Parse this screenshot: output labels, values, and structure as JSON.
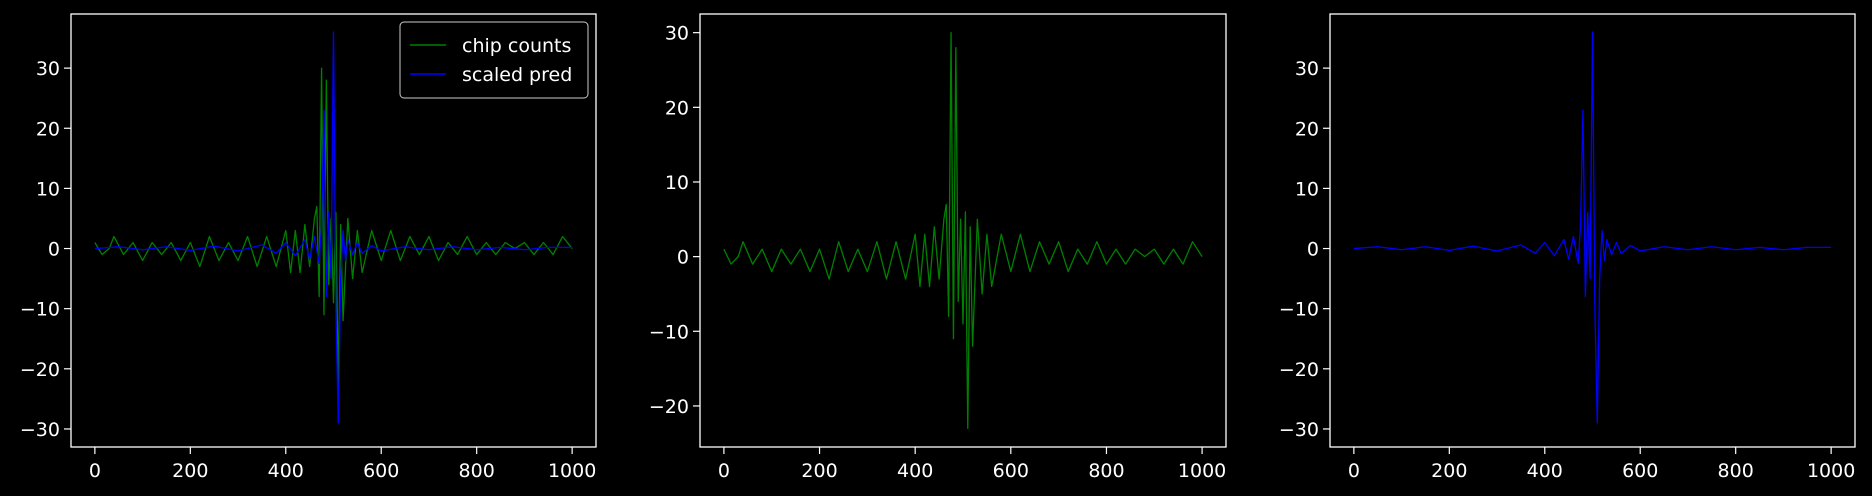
{
  "chart_data": [
    {
      "type": "line",
      "title": "",
      "xlabel": "",
      "ylabel": "",
      "xlim": [
        -50,
        1050
      ],
      "ylim": [
        -33,
        39
      ],
      "xticks": [
        0,
        200,
        400,
        600,
        800,
        1000
      ],
      "yticks": [
        -30,
        -20,
        -10,
        0,
        10,
        20,
        30
      ],
      "xtick_labels": [
        "0",
        "200",
        "400",
        "600",
        "800",
        "1000"
      ],
      "ytick_labels": [
        "−30",
        "−20",
        "−10",
        "0",
        "10",
        "20",
        "30"
      ],
      "grid": false,
      "legend": "upper right",
      "series": [
        {
          "name": "chip counts",
          "color": "#008000",
          "x": [
            0,
            15,
            30,
            40,
            60,
            80,
            100,
            120,
            140,
            160,
            180,
            200,
            220,
            240,
            260,
            280,
            300,
            320,
            340,
            360,
            380,
            400,
            410,
            420,
            430,
            440,
            450,
            460,
            465,
            470,
            475,
            480,
            485,
            490,
            495,
            500,
            505,
            510,
            515,
            520,
            530,
            540,
            550,
            560,
            580,
            600,
            620,
            640,
            660,
            680,
            700,
            720,
            740,
            760,
            780,
            800,
            820,
            840,
            860,
            880,
            900,
            920,
            940,
            960,
            980,
            1000
          ],
          "values": [
            1,
            -1,
            0,
            2,
            -1,
            1,
            -2,
            1,
            -1,
            1,
            -2,
            1,
            -3,
            2,
            -2,
            1,
            -2,
            2,
            -3,
            2,
            -3,
            3,
            -4,
            3,
            -4,
            4,
            -3,
            5,
            7,
            -8,
            30,
            -11,
            28,
            -6,
            5,
            -9,
            6,
            -23,
            4,
            -12,
            5,
            -5,
            3,
            -4,
            3,
            -2,
            3,
            -2,
            2,
            -1,
            2,
            -2,
            1,
            -1,
            2,
            -1,
            1,
            -1,
            1,
            0,
            1,
            -1,
            1,
            -1,
            2,
            0
          ]
        },
        {
          "name": "scaled pred",
          "color": "#0000ff",
          "x": [
            0,
            50,
            100,
            150,
            200,
            250,
            300,
            350,
            380,
            400,
            420,
            440,
            450,
            460,
            470,
            475,
            480,
            485,
            490,
            495,
            500,
            505,
            510,
            515,
            520,
            525,
            530,
            540,
            550,
            560,
            580,
            600,
            650,
            700,
            750,
            800,
            850,
            900,
            950,
            1000
          ],
          "values": [
            0,
            0.3,
            -0.2,
            0.3,
            -0.3,
            0.4,
            -0.4,
            0.6,
            -0.8,
            1,
            -1.2,
            1.5,
            -1.8,
            2,
            -2.5,
            4,
            23,
            -8,
            6,
            -5,
            36,
            -10,
            -29,
            -5,
            3,
            -2,
            1.5,
            -1,
            1,
            -0.8,
            0.5,
            -0.4,
            0.3,
            -0.2,
            0.3,
            -0.2,
            0.2,
            -0.2,
            0.2,
            0.2
          ]
        }
      ]
    },
    {
      "type": "line",
      "title": "",
      "xlabel": "",
      "ylabel": "",
      "xlim": [
        -50,
        1050
      ],
      "ylim": [
        -25.5,
        32.5
      ],
      "xticks": [
        0,
        200,
        400,
        600,
        800,
        1000
      ],
      "yticks": [
        -20,
        -10,
        0,
        10,
        20,
        30
      ],
      "xtick_labels": [
        "0",
        "200",
        "400",
        "600",
        "800",
        "1000"
      ],
      "ytick_labels": [
        "−20",
        "−10",
        "0",
        "10",
        "20",
        "30"
      ],
      "grid": false,
      "series": [
        {
          "color": "#008000",
          "x": [
            0,
            15,
            30,
            40,
            60,
            80,
            100,
            120,
            140,
            160,
            180,
            200,
            220,
            240,
            260,
            280,
            300,
            320,
            340,
            360,
            380,
            400,
            410,
            420,
            430,
            440,
            450,
            460,
            465,
            470,
            475,
            480,
            485,
            490,
            495,
            500,
            505,
            510,
            515,
            520,
            530,
            540,
            550,
            560,
            580,
            600,
            620,
            640,
            660,
            680,
            700,
            720,
            740,
            760,
            780,
            800,
            820,
            840,
            860,
            880,
            900,
            920,
            940,
            960,
            980,
            1000
          ],
          "values": [
            1,
            -1,
            0,
            2,
            -1,
            1,
            -2,
            1,
            -1,
            1,
            -2,
            1,
            -3,
            2,
            -2,
            1,
            -2,
            2,
            -3,
            2,
            -3,
            3,
            -4,
            3,
            -4,
            4,
            -3,
            5,
            7,
            -8,
            30,
            -11,
            28,
            -6,
            5,
            -9,
            6,
            -23,
            4,
            -12,
            5,
            -5,
            3,
            -4,
            3,
            -2,
            3,
            -2,
            2,
            -1,
            2,
            -2,
            1,
            -1,
            2,
            -1,
            1,
            -1,
            1,
            0,
            1,
            -1,
            1,
            -1,
            2,
            0
          ]
        }
      ]
    },
    {
      "type": "line",
      "title": "",
      "xlabel": "",
      "ylabel": "",
      "xlim": [
        -50,
        1050
      ],
      "ylim": [
        -33,
        39
      ],
      "xticks": [
        0,
        200,
        400,
        600,
        800,
        1000
      ],
      "yticks": [
        -30,
        -20,
        -10,
        0,
        10,
        20,
        30
      ],
      "xtick_labels": [
        "0",
        "200",
        "400",
        "600",
        "800",
        "1000"
      ],
      "ytick_labels": [
        "−30",
        "−20",
        "−10",
        "0",
        "10",
        "20",
        "30"
      ],
      "grid": false,
      "series": [
        {
          "color": "#0000ff",
          "x": [
            0,
            50,
            100,
            150,
            200,
            250,
            300,
            350,
            380,
            400,
            420,
            440,
            450,
            460,
            470,
            475,
            480,
            485,
            490,
            495,
            500,
            505,
            510,
            515,
            520,
            525,
            530,
            540,
            550,
            560,
            580,
            600,
            650,
            700,
            750,
            800,
            850,
            900,
            950,
            1000
          ],
          "values": [
            0,
            0.3,
            -0.2,
            0.3,
            -0.3,
            0.4,
            -0.4,
            0.6,
            -0.8,
            1,
            -1.2,
            1.5,
            -1.8,
            2,
            -2.5,
            4,
            23,
            -8,
            6,
            -5,
            36,
            -10,
            -29,
            -5,
            3,
            -2,
            1.5,
            -1,
            1,
            -0.8,
            0.5,
            -0.4,
            0.3,
            -0.2,
            0.3,
            -0.2,
            0.2,
            -0.2,
            0.2,
            0.2
          ]
        }
      ]
    }
  ]
}
